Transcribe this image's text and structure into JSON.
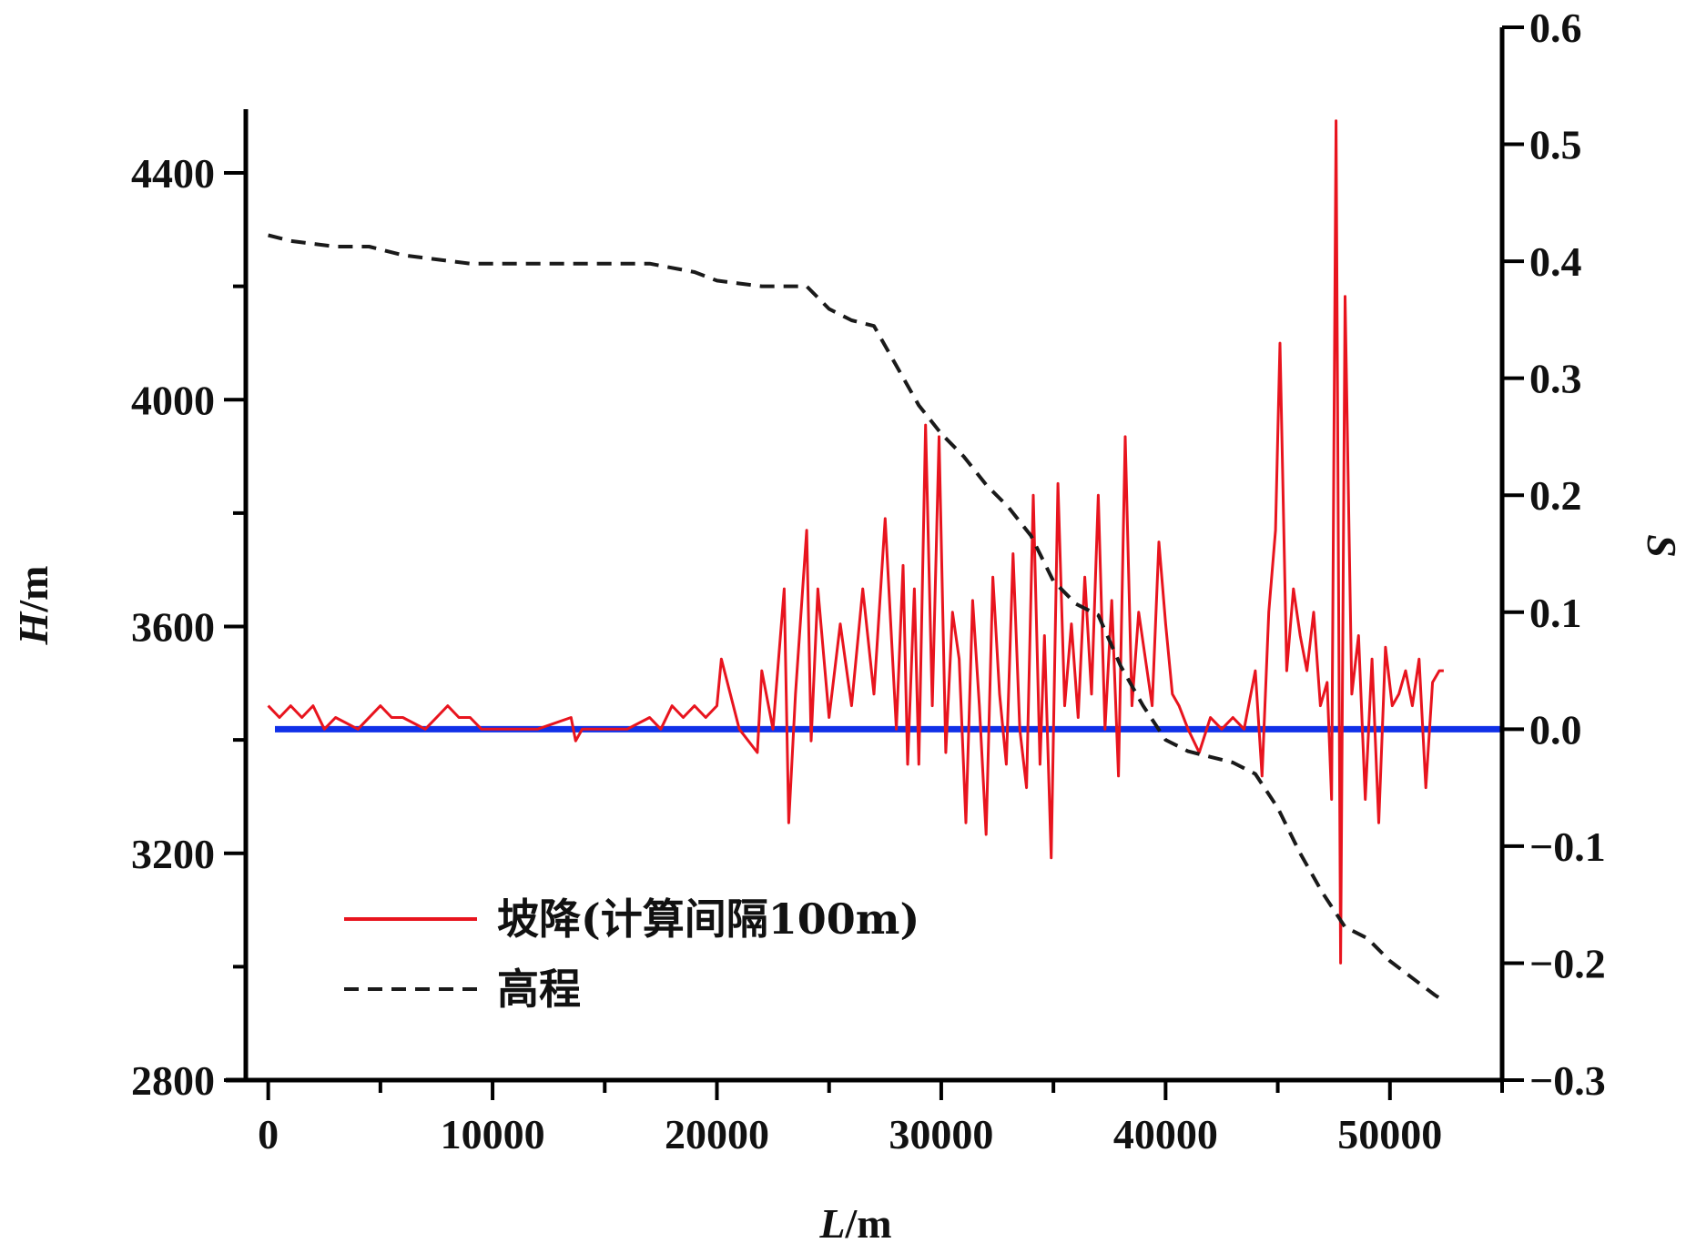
{
  "chart_data": {
    "type": "line",
    "title": "",
    "xlabel": {
      "var": "L",
      "unit": "/m"
    },
    "ylabel_left": {
      "var": "H",
      "unit": "/m"
    },
    "ylabel_right": {
      "var": "S",
      "unit": ""
    },
    "xlim": [
      -1000,
      55000
    ],
    "ylim_left": [
      2800,
      4500
    ],
    "ylim_right": [
      -0.3,
      0.6
    ],
    "x_ticks": [
      0,
      10000,
      20000,
      30000,
      40000,
      50000
    ],
    "y_left_ticks": [
      2800,
      3200,
      3600,
      4000,
      4400
    ],
    "y_right_ticks": [
      -0.3,
      -0.2,
      -0.1,
      0.0,
      0.1,
      0.2,
      0.3,
      0.4,
      0.5,
      0.6
    ],
    "y_right_tick_labels": [
      "−0.3",
      "−0.2",
      "−0.1",
      "0.0",
      "0.1",
      "0.2",
      "0.3",
      "0.4",
      "0.5",
      "0.6"
    ],
    "legend_position": "bottom-left",
    "colors": {
      "slope": "#e8141e",
      "elevation": "#1a1a1a",
      "zero_line": "#1030e8"
    },
    "series": [
      {
        "name": "坡降(计算间隔100m)",
        "axis": "right",
        "style": "solid",
        "color": "#e8141e",
        "x": [
          0,
          500,
          1000,
          1500,
          2000,
          2500,
          3000,
          4000,
          5000,
          5500,
          6000,
          7000,
          7500,
          8000,
          8500,
          9000,
          9500,
          10000,
          12000,
          13500,
          13700,
          14000,
          16000,
          17000,
          17500,
          18000,
          18500,
          19000,
          19500,
          20000,
          20200,
          21000,
          21800,
          22000,
          22500,
          23000,
          23200,
          23500,
          24000,
          24200,
          24500,
          25000,
          25500,
          26000,
          26500,
          27000,
          27500,
          28000,
          28300,
          28500,
          28800,
          29000,
          29300,
          29600,
          29900,
          30200,
          30500,
          30800,
          31100,
          31400,
          31700,
          32000,
          32300,
          32600,
          32900,
          33200,
          33500,
          33800,
          34100,
          34400,
          34600,
          34900,
          35200,
          35500,
          35800,
          36100,
          36400,
          36700,
          37000,
          37300,
          37600,
          37900,
          38200,
          38500,
          38800,
          39100,
          39400,
          39700,
          40000,
          40300,
          40600,
          41000,
          41500,
          42000,
          42500,
          43000,
          43500,
          44000,
          44300,
          44600,
          44900,
          45100,
          45400,
          45700,
          46000,
          46300,
          46600,
          46900,
          47200,
          47400,
          47600,
          47800,
          48000,
          48300,
          48600,
          48900,
          49200,
          49500,
          49800,
          50100,
          50400,
          50700,
          51000,
          51300,
          51600,
          51900,
          52200,
          52400
        ],
        "y": [
          0.02,
          0.01,
          0.02,
          0.01,
          0.02,
          0.0,
          0.01,
          0.0,
          0.02,
          0.01,
          0.01,
          0.0,
          0.01,
          0.02,
          0.01,
          0.01,
          0.0,
          0.0,
          0.0,
          0.01,
          -0.01,
          0.0,
          0.0,
          0.01,
          0.0,
          0.02,
          0.01,
          0.02,
          0.01,
          0.02,
          0.06,
          0.0,
          -0.02,
          0.05,
          0.0,
          0.12,
          -0.08,
          0.03,
          0.17,
          -0.01,
          0.12,
          0.01,
          0.09,
          0.02,
          0.12,
          0.03,
          0.18,
          0.0,
          0.14,
          -0.03,
          0.12,
          -0.03,
          0.26,
          0.02,
          0.25,
          -0.02,
          0.1,
          0.06,
          -0.08,
          0.11,
          0.02,
          -0.09,
          0.13,
          0.03,
          -0.03,
          0.15,
          0.0,
          -0.05,
          0.2,
          -0.03,
          0.08,
          -0.11,
          0.21,
          0.02,
          0.09,
          0.01,
          0.13,
          0.03,
          0.2,
          0.0,
          0.11,
          -0.04,
          0.25,
          0.02,
          0.1,
          0.06,
          0.02,
          0.16,
          0.09,
          0.03,
          0.02,
          0.0,
          -0.02,
          0.01,
          0.0,
          0.01,
          0.0,
          0.05,
          -0.04,
          0.1,
          0.17,
          0.33,
          0.05,
          0.12,
          0.08,
          0.05,
          0.1,
          0.02,
          0.04,
          -0.06,
          0.52,
          -0.2,
          0.37,
          0.03,
          0.08,
          -0.06,
          0.06,
          -0.08,
          0.07,
          0.02,
          0.03,
          0.05,
          0.02,
          0.06,
          -0.05,
          0.04,
          0.05,
          0.05
        ]
      },
      {
        "name": "高程",
        "axis": "left",
        "style": "dashed",
        "color": "#1a1a1a",
        "x": [
          0,
          1000,
          3000,
          4500,
          6000,
          7000,
          9000,
          12000,
          15000,
          17000,
          19000,
          20000,
          22000,
          24000,
          25000,
          26000,
          27000,
          28000,
          29000,
          30000,
          31000,
          32000,
          33000,
          34000,
          35000,
          36000,
          37000,
          38000,
          39000,
          40000,
          41000,
          42000,
          43000,
          44000,
          45000,
          46000,
          47000,
          48000,
          49000,
          50000,
          51000,
          52000,
          52400
        ],
        "y": [
          4290,
          4280,
          4270,
          4270,
          4255,
          4250,
          4240,
          4240,
          4240,
          4240,
          4225,
          4210,
          4200,
          4200,
          4160,
          4140,
          4130,
          4060,
          3990,
          3940,
          3900,
          3850,
          3810,
          3760,
          3680,
          3640,
          3620,
          3530,
          3460,
          3400,
          3380,
          3370,
          3360,
          3340,
          3280,
          3200,
          3130,
          3070,
          3050,
          3010,
          2980,
          2950,
          2940
        ]
      }
    ],
    "reference_lines": [
      {
        "axis": "right",
        "y": 0.0,
        "color": "#1030e8"
      }
    ]
  }
}
